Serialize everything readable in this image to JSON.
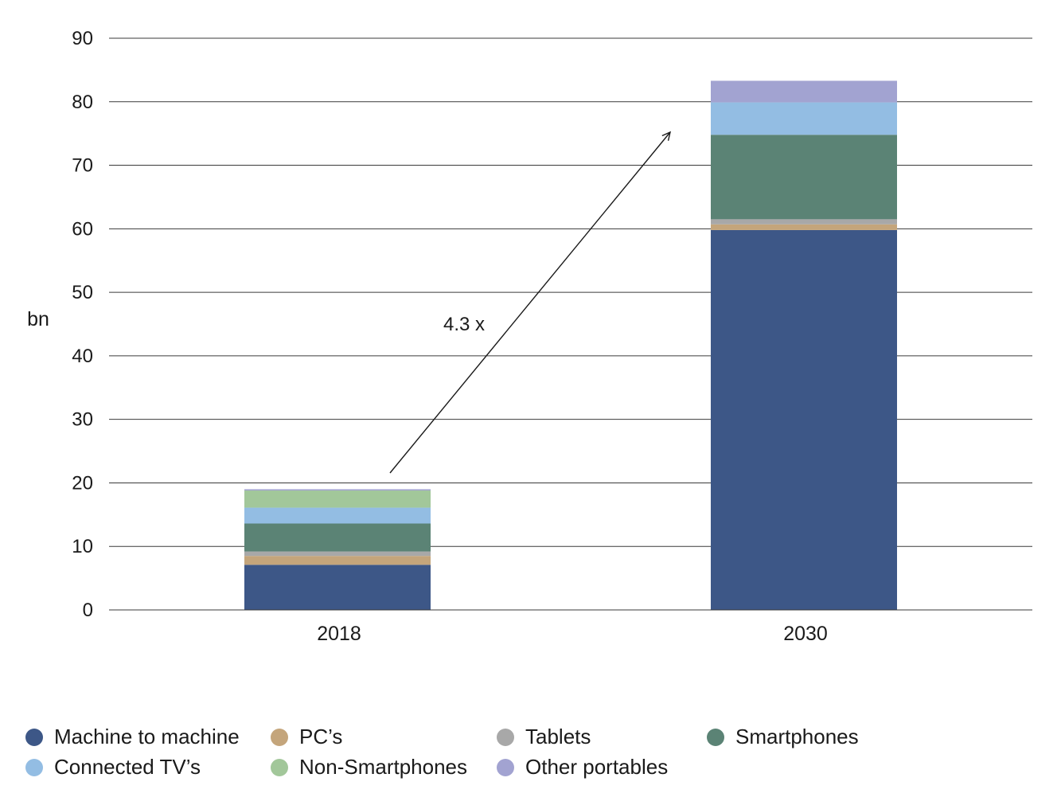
{
  "chart_data": {
    "type": "bar",
    "stacked": true,
    "ylabel": "bn",
    "ylim": [
      0,
      90
    ],
    "yticks": [
      0,
      10,
      20,
      30,
      40,
      50,
      60,
      70,
      80,
      90
    ],
    "grid": true,
    "categories": [
      "2018",
      "2030"
    ],
    "series": [
      {
        "name": "Machine to machine",
        "color": "#3d5787",
        "values": [
          7.1,
          59.8
        ]
      },
      {
        "name": "PC's",
        "color": "#c4a57b",
        "values": [
          1.4,
          0.9
        ]
      },
      {
        "name": "Tablets",
        "color": "#a8a8a8",
        "values": [
          0.7,
          0.8
        ]
      },
      {
        "name": "Smartphones",
        "color": "#5b8375",
        "values": [
          4.4,
          13.3
        ]
      },
      {
        "name": "Connected TV's",
        "color": "#93bde3",
        "values": [
          2.5,
          5.1
        ]
      },
      {
        "name": "Non-Smartphones",
        "color": "#a2c79a",
        "values": [
          2.7,
          0
        ]
      },
      {
        "name": "Other portables",
        "color": "#a2a3d1",
        "values": [
          0.2,
          3.4
        ]
      }
    ],
    "annotation": {
      "text": "4.3 x"
    },
    "legend_position": "bottom"
  },
  "legend": {
    "items": [
      {
        "label": "Machine to machine",
        "color": "#3d5787"
      },
      {
        "label": "PC’s",
        "color": "#c4a57b"
      },
      {
        "label": "Tablets",
        "color": "#a8a8a8"
      },
      {
        "label": "Smartphones",
        "color": "#5b8375"
      },
      {
        "label": "Connected TV’s",
        "color": "#93bde3"
      },
      {
        "label": "Non-Smartphones",
        "color": "#a2c79a"
      },
      {
        "label": "Other portables",
        "color": "#a2a3d1"
      }
    ]
  }
}
